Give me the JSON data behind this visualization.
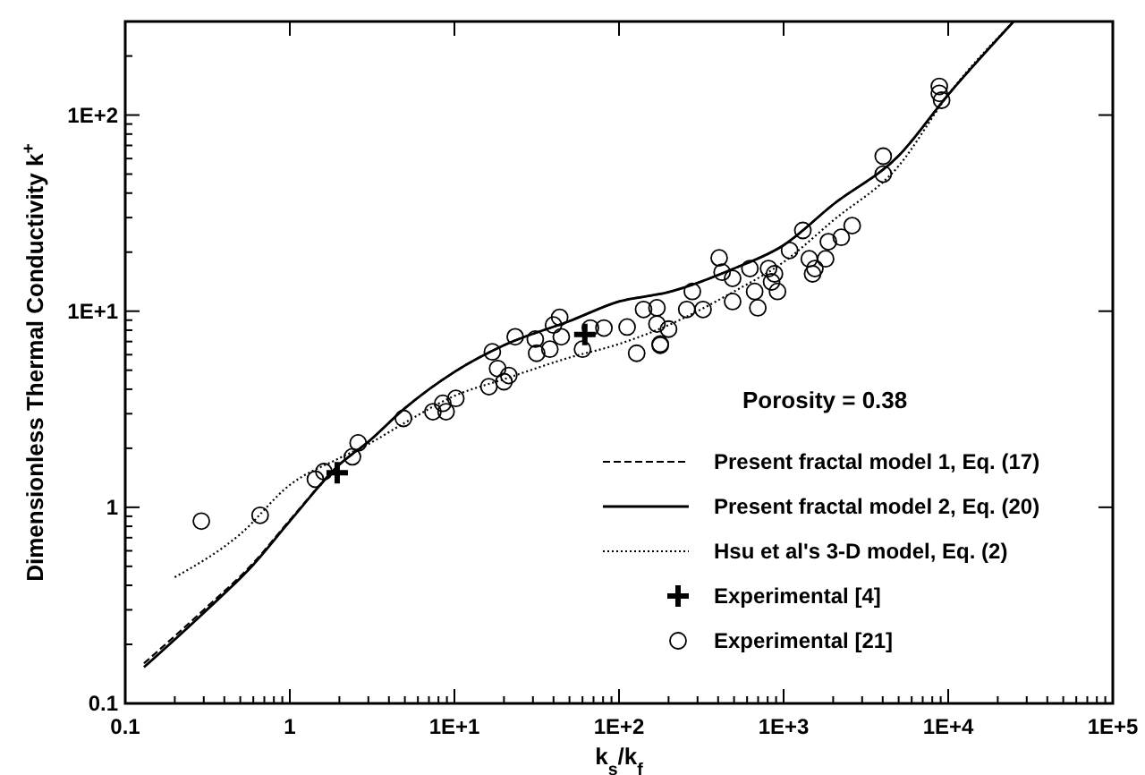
{
  "chart_data": {
    "type": "line",
    "xlabel": "k$_{s}$/k$_{f}$",
    "ylabel": "Dimensionless Thermal Conductivity k$^{+}$",
    "log": "xy",
    "grid": false,
    "legend": "right",
    "xlim": [
      0.1,
      100000
    ],
    "ylim": [
      0.1,
      300
    ],
    "xticks": [
      {
        "value": 0.1,
        "label": "0.1"
      },
      {
        "value": 0.2,
        "label": null
      },
      {
        "value": 0.3,
        "label": null
      },
      {
        "value": 0.4,
        "label": null
      },
      {
        "value": 0.5,
        "label": null
      },
      {
        "value": 0.6,
        "label": null
      },
      {
        "value": 0.7,
        "label": null
      },
      {
        "value": 0.8,
        "label": null
      },
      {
        "value": 0.9,
        "label": null
      },
      {
        "value": 1,
        "label": "1"
      },
      {
        "value": 2,
        "label": null
      },
      {
        "value": 3,
        "label": null
      },
      {
        "value": 4,
        "label": null
      },
      {
        "value": 5,
        "label": null
      },
      {
        "value": 6,
        "label": null
      },
      {
        "value": 7,
        "label": null
      },
      {
        "value": 8,
        "label": null
      },
      {
        "value": 9,
        "label": null
      },
      {
        "value": 10,
        "label": "1E+1"
      },
      {
        "value": 20,
        "label": null
      },
      {
        "value": 30,
        "label": null
      },
      {
        "value": 40,
        "label": null
      },
      {
        "value": 50,
        "label": null
      },
      {
        "value": 60,
        "label": null
      },
      {
        "value": 70,
        "label": null
      },
      {
        "value": 80,
        "label": null
      },
      {
        "value": 90,
        "label": null
      },
      {
        "value": 100,
        "label": "1E+2"
      },
      {
        "value": 200,
        "label": null
      },
      {
        "value": 300,
        "label": null
      },
      {
        "value": 400,
        "label": null
      },
      {
        "value": 500,
        "label": null
      },
      {
        "value": 600,
        "label": null
      },
      {
        "value": 700,
        "label": null
      },
      {
        "value": 800,
        "label": null
      },
      {
        "value": 900,
        "label": null
      },
      {
        "value": 1000,
        "label": "1E+3"
      },
      {
        "value": 2000,
        "label": null
      },
      {
        "value": 3000,
        "label": null
      },
      {
        "value": 4000,
        "label": null
      },
      {
        "value": 5000,
        "label": null
      },
      {
        "value": 6000,
        "label": null
      },
      {
        "value": 7000,
        "label": null
      },
      {
        "value": 8000,
        "label": null
      },
      {
        "value": 9000,
        "label": null
      },
      {
        "value": 10000,
        "label": "1E+4"
      },
      {
        "value": 20000,
        "label": null
      },
      {
        "value": 30000,
        "label": null
      },
      {
        "value": 40000,
        "label": null
      },
      {
        "value": 50000,
        "label": null
      },
      {
        "value": 60000,
        "label": null
      },
      {
        "value": 70000,
        "label": null
      },
      {
        "value": 80000,
        "label": null
      },
      {
        "value": 90000,
        "label": null
      },
      {
        "value": 100000,
        "label": "1E+5"
      }
    ],
    "yticks": [
      {
        "value": 0.1,
        "label": "0.1"
      },
      {
        "value": 0.2,
        "label": null
      },
      {
        "value": 0.3,
        "label": null
      },
      {
        "value": 0.4,
        "label": null
      },
      {
        "value": 0.5,
        "label": null
      },
      {
        "value": 0.6,
        "label": null
      },
      {
        "value": 0.7,
        "label": null
      },
      {
        "value": 0.8,
        "label": null
      },
      {
        "value": 0.9,
        "label": null
      },
      {
        "value": 1,
        "label": "1"
      },
      {
        "value": 2,
        "label": null
      },
      {
        "value": 3,
        "label": null
      },
      {
        "value": 4,
        "label": null
      },
      {
        "value": 5,
        "label": null
      },
      {
        "value": 6,
        "label": null
      },
      {
        "value": 7,
        "label": null
      },
      {
        "value": 8,
        "label": null
      },
      {
        "value": 9,
        "label": null
      },
      {
        "value": 10,
        "label": "1E+1"
      },
      {
        "value": 20,
        "label": null
      },
      {
        "value": 30,
        "label": null
      },
      {
        "value": 40,
        "label": null
      },
      {
        "value": 50,
        "label": null
      },
      {
        "value": 60,
        "label": null
      },
      {
        "value": 70,
        "label": null
      },
      {
        "value": 80,
        "label": null
      },
      {
        "value": 90,
        "label": null
      },
      {
        "value": 100,
        "label": "1E+2"
      },
      {
        "value": 200,
        "label": null
      },
      {
        "value": 300,
        "label": null
      }
    ],
    "annotations": [
      "Porosity = 0.38"
    ],
    "series": [
      {
        "name": "Present fractal model 1, Eq. (17)",
        "color": "#000000",
        "line_style": "dashed",
        "x": [
          0.13,
          0.3,
          0.6,
          1,
          2,
          3,
          5,
          10,
          20,
          50,
          100,
          200,
          500,
          1000,
          2000,
          5000,
          10000,
          25000
        ],
        "values": [
          0.16,
          0.3,
          0.52,
          0.86,
          1.65,
          2.16,
          3.2,
          4.9,
          6.7,
          8.9,
          11.2,
          12.5,
          16.5,
          21.7,
          35,
          62,
          127,
          300
        ]
      },
      {
        "name": "Present fractal model 2, Eq. (20)",
        "color": "#000000",
        "line_style": "solid",
        "x": [
          0.13,
          0.3,
          0.6,
          1,
          2,
          3,
          5,
          10,
          20,
          50,
          100,
          200,
          500,
          1000,
          2000,
          5000,
          10000,
          25000
        ],
        "values": [
          0.153,
          0.29,
          0.51,
          0.85,
          1.65,
          2.16,
          3.2,
          4.9,
          6.7,
          8.9,
          11.2,
          12.5,
          16.5,
          21.7,
          35,
          62,
          127,
          300
        ]
      },
      {
        "name": "Hsu et al's 3-D model, Eq. (2)",
        "color": "#000000",
        "line_style": "dotted",
        "x": [
          0.2,
          0.5,
          1,
          2,
          3,
          5,
          10,
          20,
          50,
          100,
          200,
          500,
          1000,
          2000,
          5000,
          10000,
          25000
        ],
        "values": [
          0.44,
          0.73,
          1.3,
          1.78,
          2.1,
          2.7,
          3.7,
          4.5,
          5.8,
          6.8,
          8.5,
          12.6,
          17.8,
          29,
          55,
          127,
          300
        ]
      },
      {
        "name": "Experimental [4]",
        "type": "scatter",
        "color": "#000000",
        "marker": "cross",
        "x": [
          1.94,
          62
        ],
        "values": [
          1.5,
          7.6
        ]
      },
      {
        "name": "Experimental [21]",
        "type": "scatter",
        "color": "#000000",
        "marker": "circle",
        "x": [
          0.29,
          0.66,
          1.43,
          1.61,
          2.4,
          2.6,
          4.9,
          7.4,
          8.5,
          8.9,
          10.2,
          16.2,
          18.3,
          17,
          20,
          21.4,
          23.4,
          31.6,
          38,
          44.6,
          60,
          128,
          178,
          200,
          31,
          43.6,
          40,
          67,
          81,
          112,
          141,
          170,
          170,
          178,
          279,
          324,
          258,
          406,
          423,
          490,
          490,
          624,
          667,
          697,
          810,
          845,
          918,
          880,
          1087,
          1309,
          1432,
          1549,
          1500,
          1870,
          1800,
          2240,
          2610,
          4030,
          4030,
          8830,
          8830,
          9120
        ],
        "values": [
          0.85,
          0.91,
          1.39,
          1.52,
          1.81,
          2.13,
          2.84,
          3.07,
          3.39,
          3.07,
          3.59,
          4.12,
          5.1,
          6.2,
          4.37,
          4.7,
          7.4,
          6.1,
          6.4,
          7.4,
          6.4,
          6.1,
          6.7,
          8.1,
          7.2,
          9.3,
          8.5,
          8.2,
          8.2,
          8.3,
          10.2,
          10.4,
          8.6,
          6.8,
          12.6,
          10.2,
          10.2,
          18.7,
          15.8,
          11.2,
          14.7,
          16.5,
          12.6,
          10.4,
          16.5,
          14.1,
          12.6,
          15.5,
          20.4,
          25.8,
          18.5,
          16.5,
          15.5,
          22.6,
          18.5,
          23.8,
          27.3,
          61.7,
          50,
          140,
          129,
          119
        ]
      }
    ]
  }
}
